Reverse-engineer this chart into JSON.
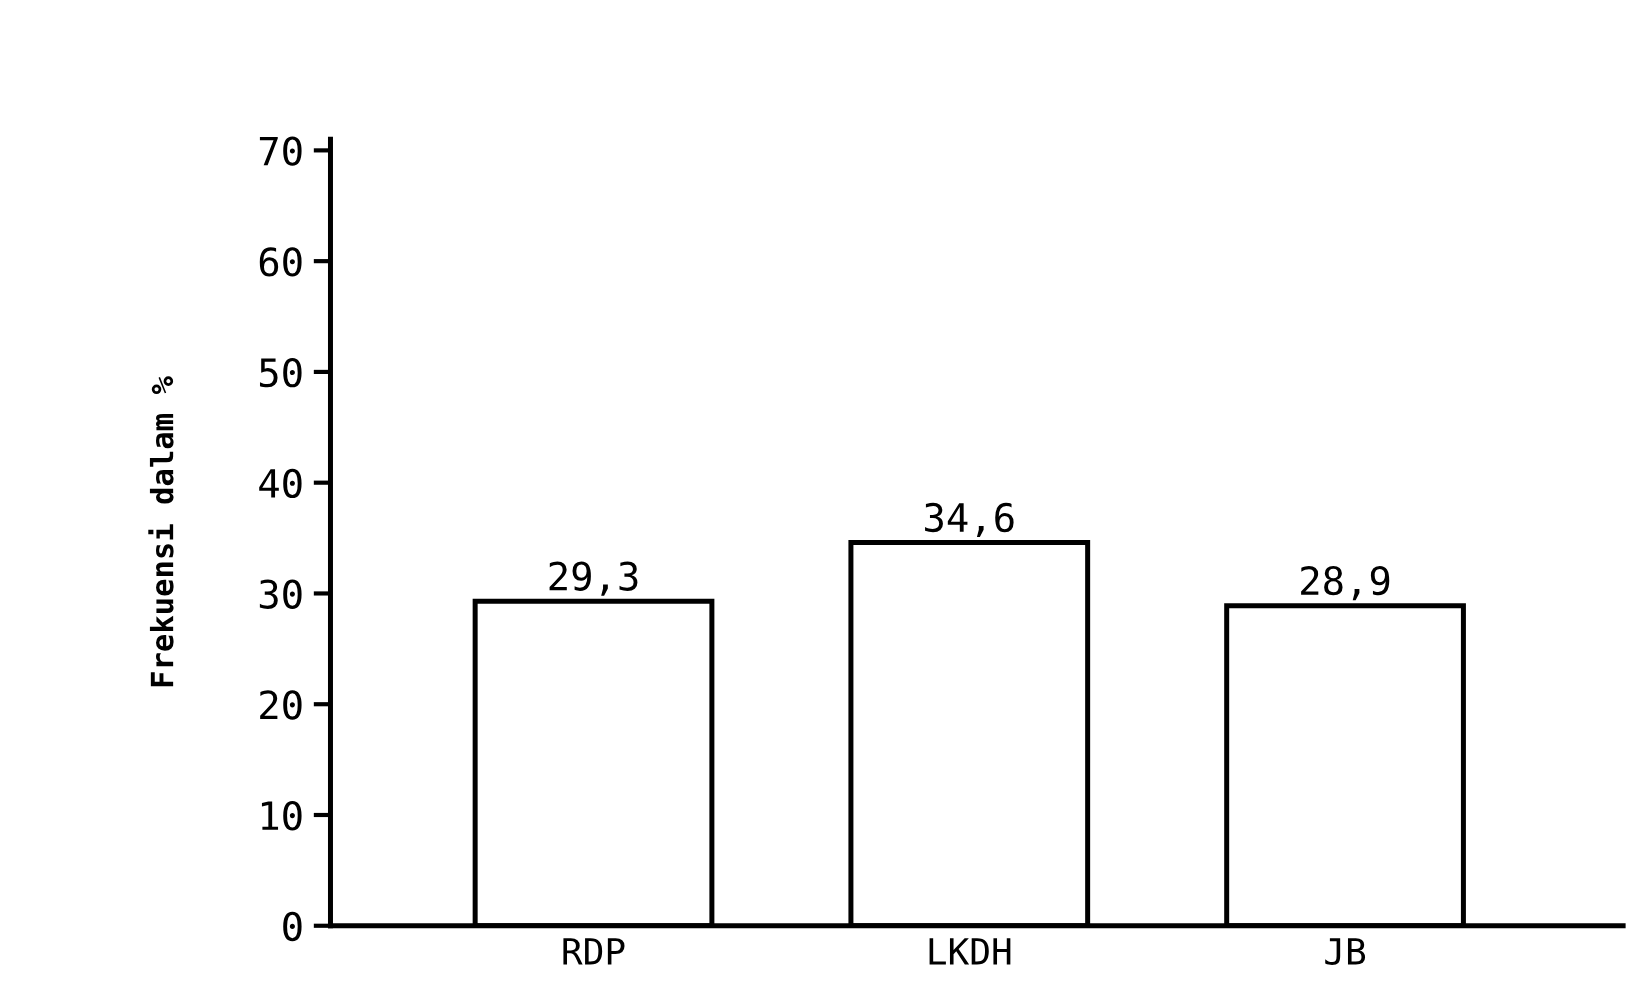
{
  "chart_data": {
    "type": "bar",
    "ylabel": "Frekuensi dalam %",
    "categories": [
      "RDP",
      "LKDH",
      "JB"
    ],
    "values": [
      29.3,
      34.6,
      28.9
    ],
    "value_labels": [
      "29,3",
      "34,6",
      "28,9"
    ],
    "color": "#ffffff",
    "ylim": [
      0,
      71
    ],
    "yticks": [
      0,
      10,
      20,
      30,
      40,
      50,
      60,
      70
    ],
    "grid": false,
    "legend": false
  }
}
